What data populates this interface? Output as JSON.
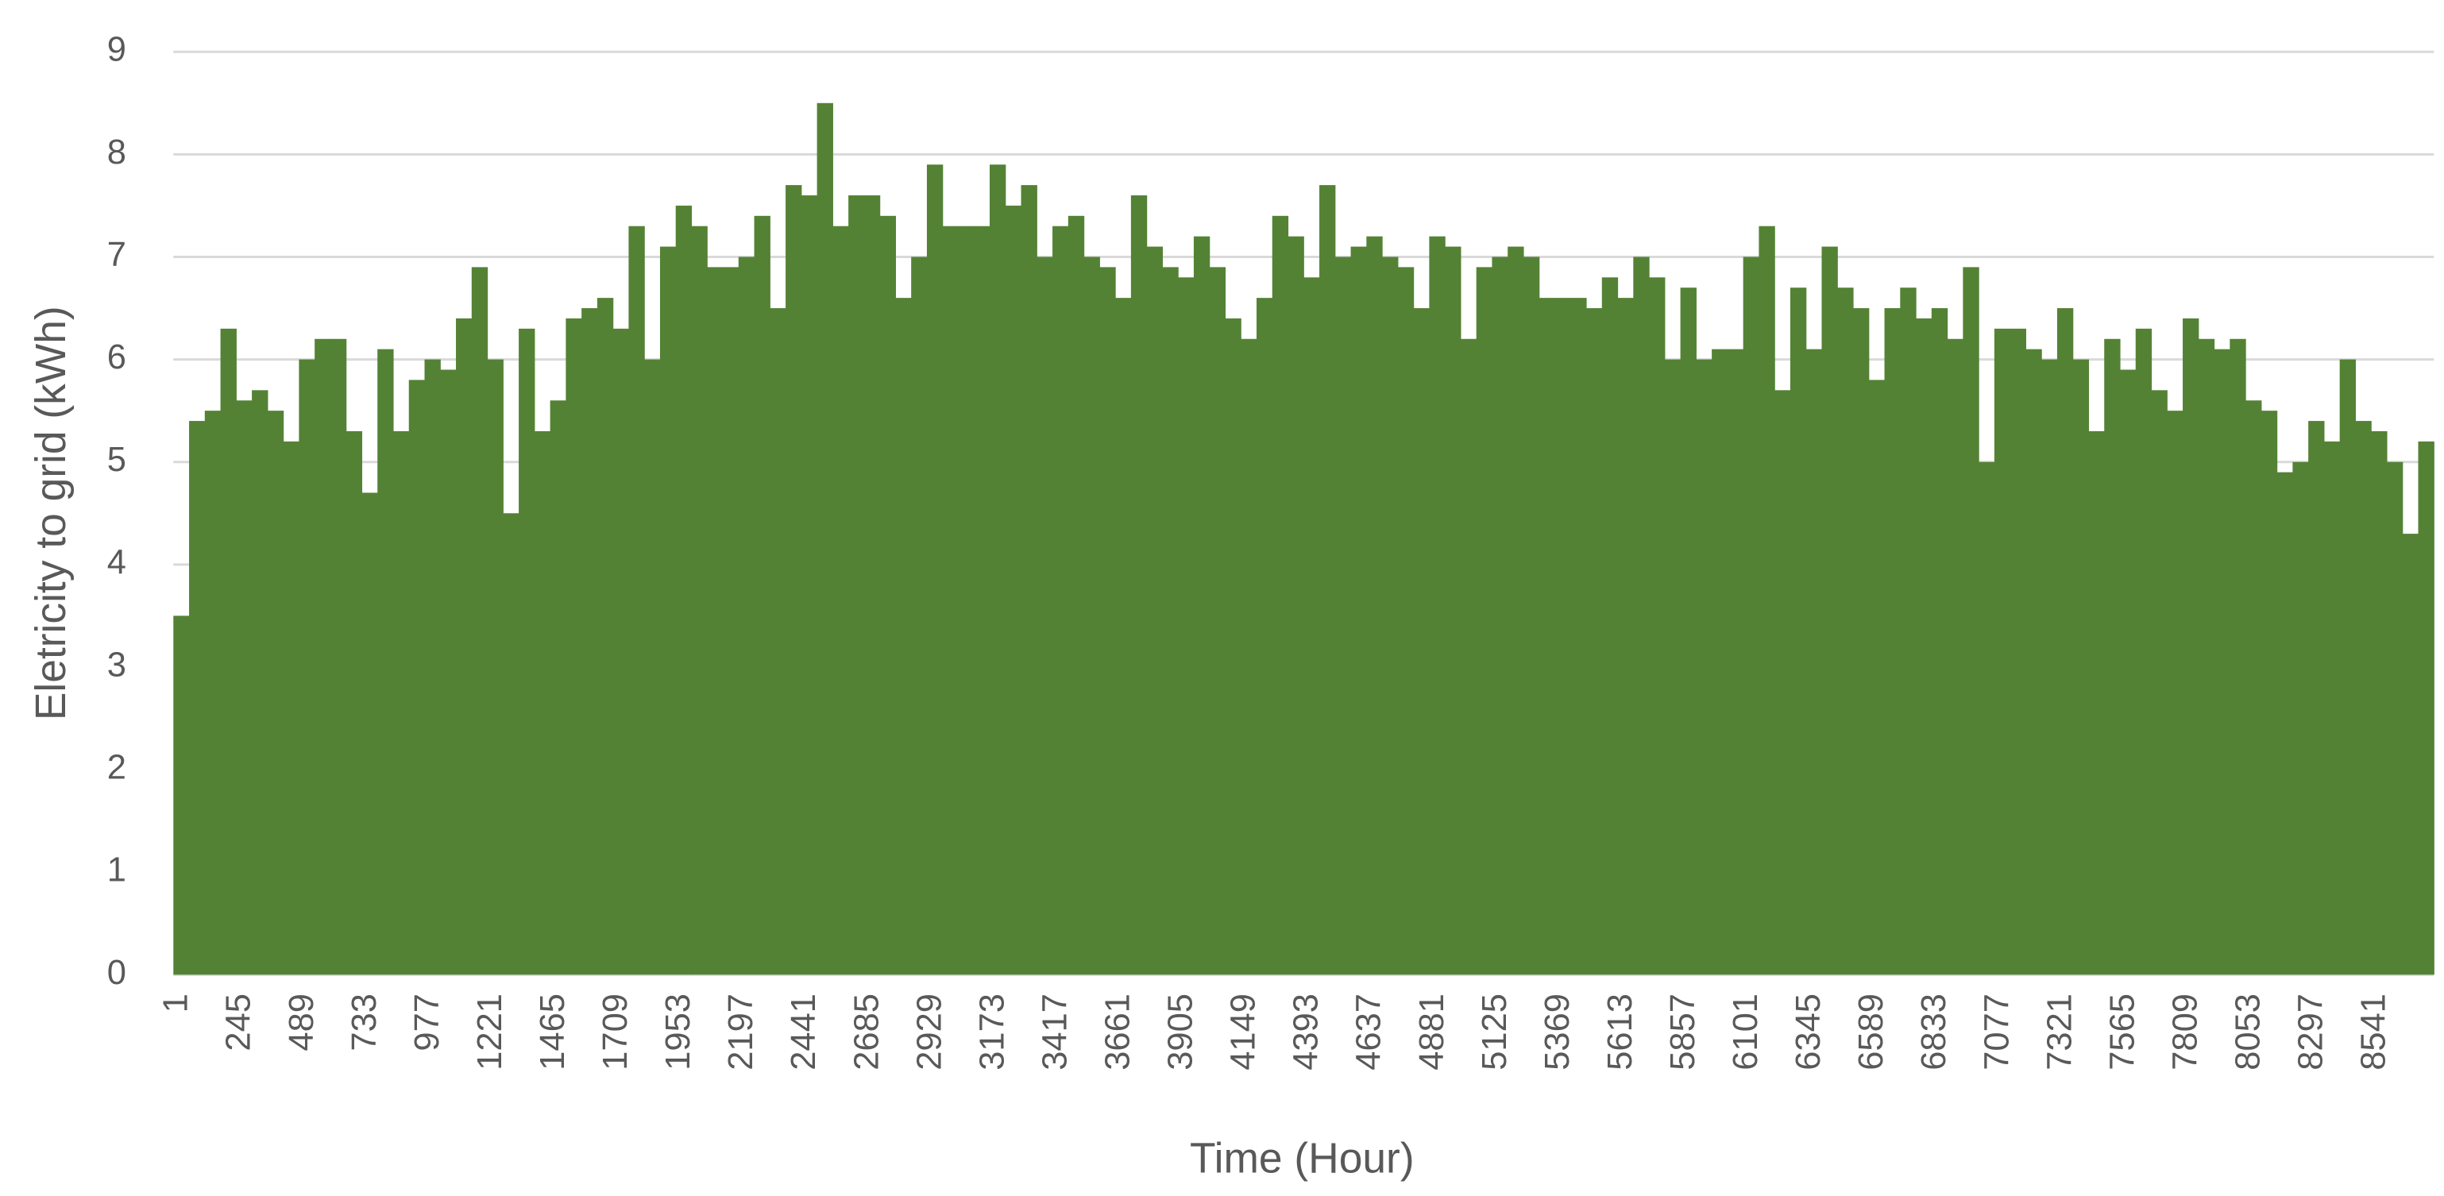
{
  "chart_data": {
    "type": "bar",
    "x_label": "Time (Hour)",
    "y_label": "Eletricity to grid (kWh)",
    "color": "#548235",
    "grid": true,
    "ylim": [
      0,
      9
    ],
    "yticks": [
      0,
      1,
      2,
      3,
      4,
      5,
      6,
      7,
      8,
      9
    ],
    "categories": [
      "1",
      null,
      null,
      null,
      "245",
      null,
      null,
      null,
      "489",
      null,
      null,
      null,
      "733",
      null,
      null,
      null,
      "977",
      null,
      null,
      null,
      "1221",
      null,
      null,
      null,
      "1465",
      null,
      null,
      null,
      "1709",
      null,
      null,
      null,
      "1953",
      null,
      null,
      null,
      "2197",
      null,
      null,
      null,
      "2441",
      null,
      null,
      null,
      "2685",
      null,
      null,
      null,
      "2929",
      null,
      null,
      null,
      "3173",
      null,
      null,
      null,
      "3417",
      null,
      null,
      null,
      "3661",
      null,
      null,
      null,
      "3905",
      null,
      null,
      null,
      "4149",
      null,
      null,
      null,
      "4393",
      null,
      null,
      null,
      "4637",
      null,
      null,
      null,
      "4881",
      null,
      null,
      null,
      "5125",
      null,
      null,
      null,
      "5369",
      null,
      null,
      null,
      "5613",
      null,
      null,
      null,
      "5857",
      null,
      null,
      null,
      "6101",
      null,
      null,
      null,
      "6345",
      null,
      null,
      null,
      "6589",
      null,
      null,
      null,
      "6833",
      null,
      null,
      null,
      "7077",
      null,
      null,
      null,
      "7321",
      null,
      null,
      null,
      "7565",
      null,
      null,
      null,
      "7809",
      null,
      null,
      null,
      "8053",
      null,
      null,
      null,
      "8297",
      null,
      null,
      null,
      "8541",
      null,
      null,
      null
    ],
    "values": [
      3.5,
      5.4,
      5.5,
      6.3,
      5.6,
      5.7,
      5.5,
      5.2,
      6.0,
      6.2,
      6.2,
      5.3,
      4.7,
      6.1,
      5.3,
      5.8,
      6.0,
      5.9,
      6.4,
      6.9,
      6.0,
      4.5,
      6.3,
      5.3,
      5.6,
      6.4,
      6.5,
      6.6,
      6.3,
      7.3,
      6.0,
      7.1,
      7.5,
      7.3,
      6.9,
      6.9,
      7.0,
      7.4,
      6.5,
      7.7,
      7.6,
      8.5,
      7.3,
      7.6,
      7.6,
      7.4,
      6.6,
      7.0,
      7.9,
      7.3,
      7.3,
      7.3,
      7.9,
      7.5,
      7.7,
      7.0,
      7.3,
      7.4,
      7.0,
      6.9,
      6.6,
      7.6,
      7.1,
      6.9,
      6.8,
      7.2,
      6.9,
      6.4,
      6.2,
      6.6,
      7.4,
      7.2,
      6.8,
      7.7,
      7.0,
      7.1,
      7.2,
      7.0,
      6.9,
      6.5,
      7.2,
      7.1,
      6.2,
      6.9,
      7.0,
      7.1,
      7.0,
      6.6,
      6.6,
      6.6,
      6.5,
      6.8,
      6.6,
      7.0,
      6.8,
      6.0,
      6.7,
      6.0,
      6.1,
      6.1,
      7.0,
      7.3,
      5.7,
      6.7,
      6.1,
      7.1,
      6.7,
      6.5,
      5.8,
      6.5,
      6.7,
      6.4,
      6.5,
      6.2,
      6.9,
      5.0,
      6.3,
      6.3,
      6.1,
      6.0,
      6.5,
      6.0,
      5.3,
      6.2,
      5.9,
      6.3,
      5.7,
      5.5,
      6.4,
      6.2,
      6.1,
      6.2,
      5.6,
      5.5,
      4.9,
      5.0,
      5.4,
      5.2,
      6.0,
      5.4,
      5.3,
      5.0,
      4.3,
      5.2
    ]
  }
}
